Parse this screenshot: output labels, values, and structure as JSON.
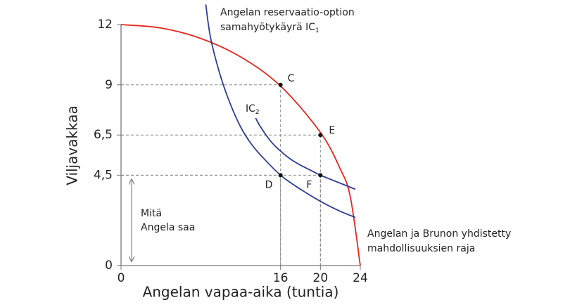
{
  "chart_data": {
    "type": "line",
    "xlabel": "Angelan vapaa-aika (tuntia)",
    "ylabel": "Viljavakkaa",
    "xlim": [
      0,
      24
    ],
    "xticks": [
      0,
      16,
      20,
      24
    ],
    "ylim": [
      0,
      12
    ],
    "yticks": [
      0,
      {
        "value": 4.5,
        "label": "4,5"
      },
      {
        "value": 6.5,
        "label": "6,5"
      },
      9,
      12
    ],
    "series": [
      {
        "name": [
          "Angelan ja Brunon yhdistetty",
          "mahdollisuuksien raja"
        ],
        "color": "#e3261c",
        "x": [
          0,
          4,
          8,
          12,
          16,
          20,
          22,
          23,
          24
        ],
        "values": [
          12,
          11.83,
          11.31,
          10.39,
          8.94,
          6.63,
          4.8,
          3.42,
          0
        ]
      },
      {
        "name": [
          "Angelan reservaatio-option",
          "samahyötykäyrä IC"
        ],
        "subscript": "1",
        "color": "#2e3d98",
        "x": [
          8.5,
          9,
          10,
          11,
          12,
          13,
          14,
          16,
          18,
          20,
          22,
          23.5
        ],
        "values": [
          13,
          11.3,
          9.4,
          8.0,
          6.9,
          6.1,
          5.5,
          4.5,
          3.8,
          3.2,
          2.7,
          2.4
        ]
      },
      {
        "name": [
          "IC"
        ],
        "subscript": "2",
        "color": "#2e3d98",
        "x": [
          13.5,
          14,
          15,
          16,
          17,
          18,
          19,
          20,
          22,
          23.5
        ],
        "values": [
          7.35,
          6.9,
          6.2,
          5.7,
          5.3,
          5.0,
          4.75,
          4.5,
          4.1,
          3.8
        ]
      }
    ],
    "points": [
      {
        "label": "C",
        "x": 16,
        "y": 9
      },
      {
        "label": "E",
        "x": 20,
        "y": 6.5
      },
      {
        "label": "D",
        "x": 16,
        "y": 4.5
      },
      {
        "label": "F",
        "x": 20,
        "y": 4.5
      }
    ],
    "annotation": {
      "text": [
        "Mitä",
        "Angela saa"
      ],
      "span": [
        0,
        4.5
      ]
    }
  }
}
